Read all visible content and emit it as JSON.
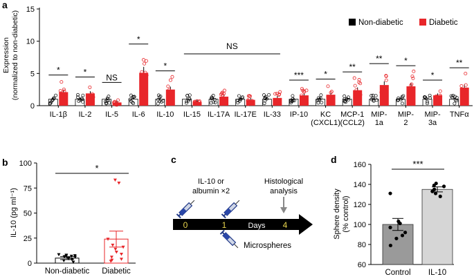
{
  "panels": {
    "a": "a",
    "b": "b",
    "c": "c",
    "d": "d"
  },
  "colors": {
    "non_diabetic": "#000000",
    "diabetic": "#e8262a",
    "control_bar": "#9a9a9a",
    "il10_bar": "#d6d6d6"
  },
  "chart_data": [
    {
      "panel": "a",
      "type": "bar",
      "ylabel": "Expression (normalized to non-diabetic)",
      "ylim": [
        0,
        15
      ],
      "yticks": [
        0,
        5,
        10,
        15
      ],
      "legend": {
        "placement": "top-right",
        "entries": [
          "Non-diabetic",
          "Diabetic"
        ]
      },
      "categories": [
        [
          "IL-1β"
        ],
        [
          "IL-2"
        ],
        [
          "IL-5"
        ],
        [
          "IL-6"
        ],
        [
          "IL-10"
        ],
        [
          "IL-15"
        ],
        [
          "IL-17A"
        ],
        [
          "IL-17E"
        ],
        [
          "IL-33"
        ],
        [
          "IP-10"
        ],
        [
          "KC",
          "(CXCL1)"
        ],
        [
          "MCP-1",
          "(CCL2)"
        ],
        [
          "MIP-",
          "1a"
        ],
        [
          "MIP-",
          "2"
        ],
        [
          "MIP-",
          "3a"
        ],
        [
          "TNFα"
        ]
      ],
      "series": [
        {
          "name": "Non-diabetic",
          "values": [
            1,
            1,
            1,
            1,
            1,
            1,
            1,
            1,
            1,
            1,
            1,
            1,
            1,
            1,
            1,
            1
          ]
        },
        {
          "name": "Diabetic",
          "values": [
            2.1,
            1.9,
            0.5,
            5.1,
            2.5,
            0.6,
            1.4,
            0.9,
            1.2,
            1.6,
            1.7,
            2.4,
            3.2,
            3.0,
            1.6,
            2.8
          ]
        }
      ],
      "significance": [
        "*",
        "*",
        "NS",
        "*",
        "*",
        "",
        "",
        "",
        "",
        "***",
        "*",
        "**",
        "**",
        "*",
        "*",
        "**"
      ],
      "ns_group": {
        "label": "NS",
        "from": 5,
        "to": 8
      }
    },
    {
      "panel": "b",
      "type": "bar",
      "ylabel": "IL-10 (pg ml⁻¹)",
      "ylim": [
        0,
        100
      ],
      "yticks": [
        0,
        25,
        50,
        75,
        100
      ],
      "categories": [
        "Non-diabetic",
        "Diabetic"
      ],
      "values": [
        5,
        24
      ],
      "errors": [
        1.5,
        8
      ],
      "points": [
        [
          8.5,
          8,
          7.5,
          7,
          7,
          6.5,
          6,
          5,
          4.5,
          3.5,
          2.5,
          1
        ],
        [
          83,
          80,
          24,
          18,
          16,
          14,
          11,
          9,
          6,
          4,
          3,
          2
        ]
      ],
      "significance": "*"
    },
    {
      "panel": "d",
      "type": "bar",
      "ylabel": "Sphere density (% control)",
      "ylim": [
        60,
        160
      ],
      "yticks": [
        60,
        80,
        100,
        120,
        140,
        160
      ],
      "categories": [
        "Control",
        "IL-10"
      ],
      "values": [
        100,
        135
      ],
      "errors": [
        6,
        2.5
      ],
      "points": [
        [
          131,
          103,
          101,
          97,
          92,
          89,
          86,
          79
        ],
        [
          141,
          139,
          138,
          135,
          133,
          131,
          128
        ]
      ],
      "significance": "***"
    }
  ],
  "timeline": {
    "treat_label_1": "IL-10 or",
    "treat_label_2": "albumin ×2",
    "histo_label_1": "Histological",
    "histo_label_2": "analysis",
    "day0": "0",
    "day1": "1",
    "days_word": "Days",
    "day4": "4",
    "microspheres_label": "Microspheres"
  }
}
